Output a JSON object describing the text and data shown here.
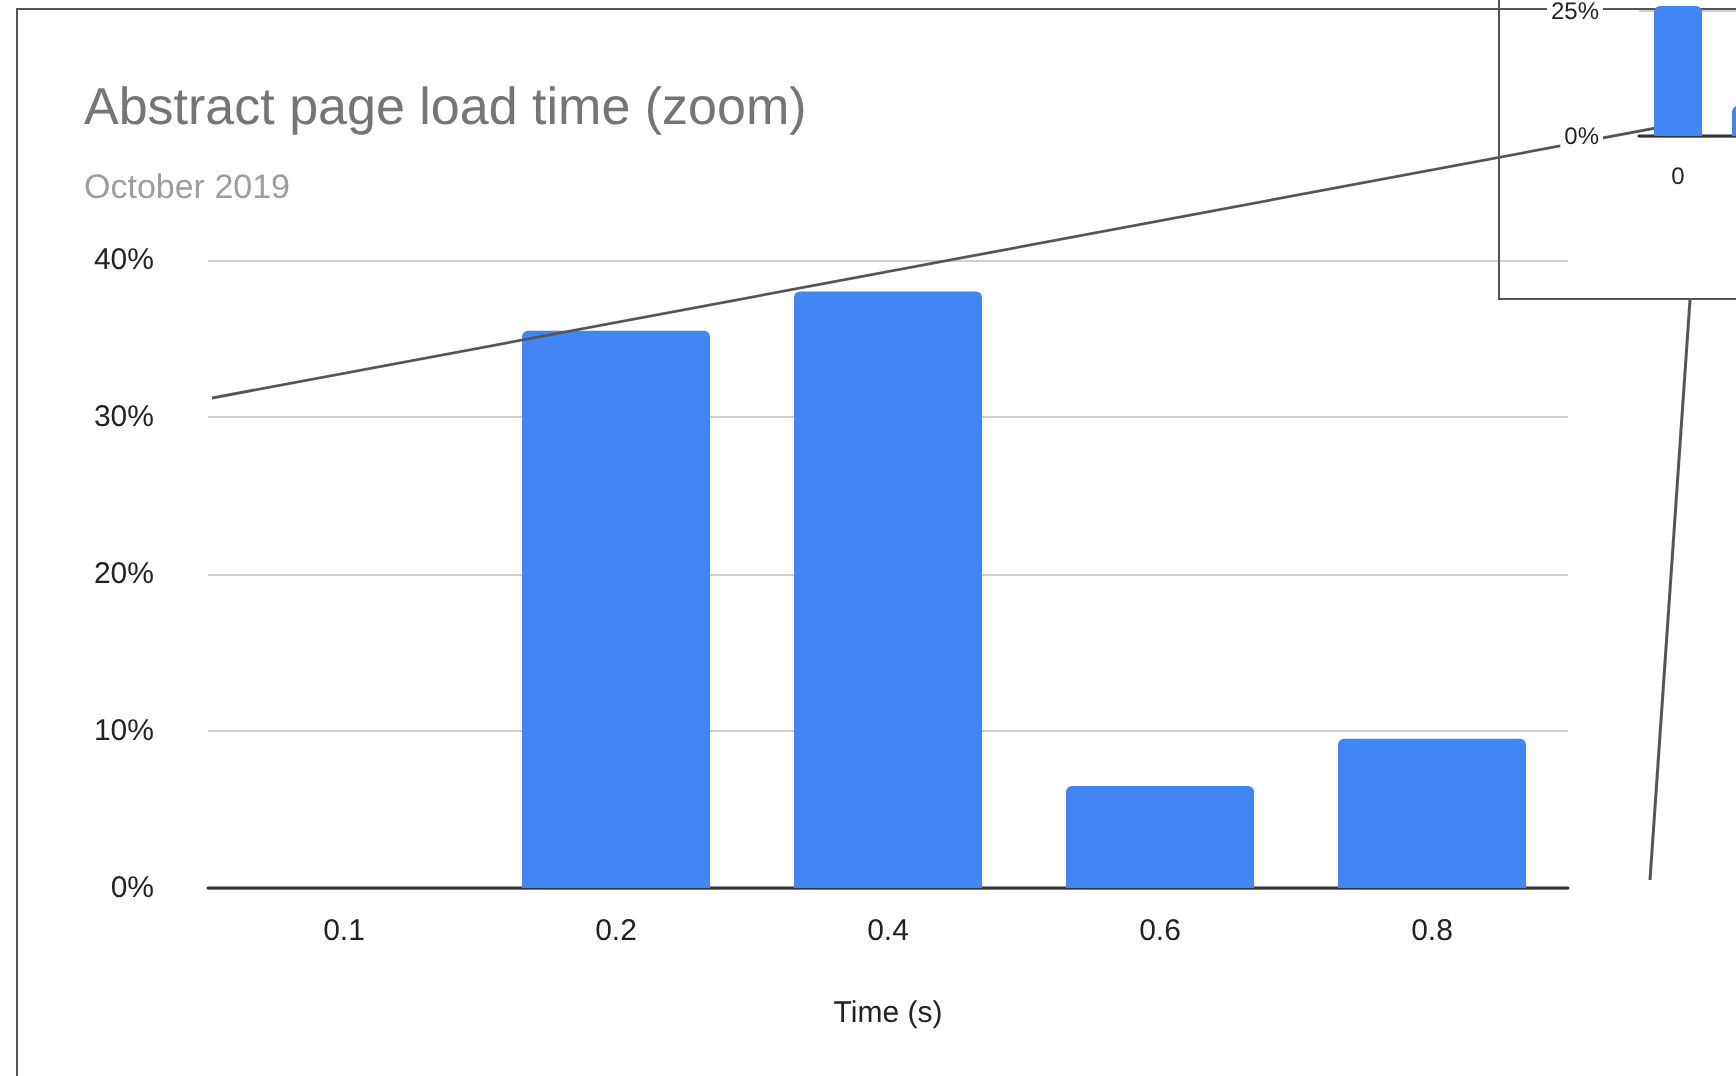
{
  "chart_data": [
    {
      "type": "bar",
      "title": "Abstract page load time (zoom)",
      "subtitle": "October 2019",
      "xlabel": "Time (s)",
      "categories": [
        "0.1",
        "0.2",
        "0.4",
        "0.6",
        "0.8"
      ],
      "values": [
        0,
        35.5,
        38,
        6.5,
        9.5
      ],
      "color": "#4285f4",
      "ylim": [
        0,
        40
      ],
      "yticks": [
        {
          "value": 0,
          "label": "0%"
        },
        {
          "value": 10,
          "label": "10%"
        },
        {
          "value": 20,
          "label": "20%"
        },
        {
          "value": 30,
          "label": "30%"
        },
        {
          "value": 40,
          "label": "40%"
        }
      ],
      "grid": "y"
    },
    {
      "type": "bar",
      "categories": [
        "0",
        null
      ],
      "values": [
        26,
        6
      ],
      "color": "#4285f4",
      "ylim": [
        0,
        26
      ],
      "yticks": [
        {
          "value": 0,
          "label": "0%"
        },
        {
          "value": 25,
          "label": "25%"
        }
      ],
      "grid": "y"
    }
  ]
}
